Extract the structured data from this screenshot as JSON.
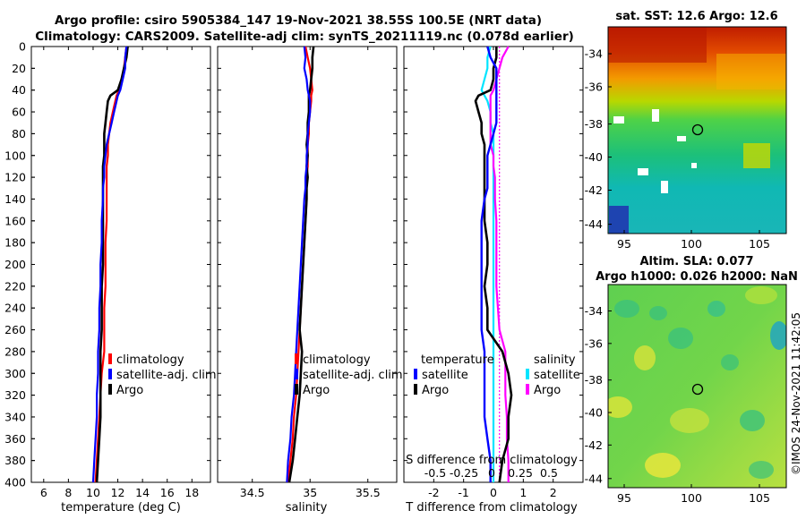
{
  "chart_data": {
    "type": "line",
    "title_line1": "Argo profile: csiro 5905384_147 19-Nov-2021 38.55S 100.5E (NRT data)",
    "title_line2": "Climatology: CARS2009. Satellite-adj clim: synTS_20211119.nc (0.078d earlier)",
    "depth_ticks": [
      "0",
      "20",
      "40",
      "60",
      "80",
      "100",
      "120",
      "140",
      "160",
      "180",
      "200",
      "220",
      "240",
      "260",
      "280",
      "300",
      "320",
      "340",
      "360",
      "380",
      "400"
    ],
    "depth": [
      0,
      10,
      20,
      30,
      40,
      45,
      50,
      60,
      70,
      80,
      90,
      100,
      110,
      120,
      130,
      140,
      160,
      180,
      200,
      220,
      240,
      260,
      280,
      300,
      320,
      340,
      360,
      380,
      400
    ],
    "panels": [
      {
        "id": "temp",
        "xlabel": "temperature (deg C)",
        "xlim": [
          5,
          19.5
        ],
        "xticks": [
          6,
          8,
          10,
          12,
          14,
          16,
          18
        ],
        "xtick_labels": [
          "6",
          "8",
          "10",
          "12",
          "14",
          "16",
          "18"
        ],
        "legend_title": "",
        "legend": [
          {
            "label": "climatology",
            "color": "#ff0000"
          },
          {
            "label": "satellite-adj. clim",
            "color": "#0000ff"
          },
          {
            "label": "Argo",
            "color": "#000000"
          }
        ],
        "series": [
          {
            "name": "climatology",
            "color": "#ff0000",
            "width": 2.2,
            "values": [
              12.7,
              12.6,
              12.5,
              12.3,
              12.1,
              11.9,
              11.8,
              11.6,
              11.4,
              11.3,
              11.2,
              11.2,
              11.1,
              11.1,
              11.1,
              11.1,
              11.1,
              11.0,
              11.0,
              11.0,
              10.9,
              10.9,
              10.9,
              10.7,
              10.6,
              10.5,
              10.4,
              10.3,
              10.2
            ]
          },
          {
            "name": "Argo",
            "color": "#000000",
            "width": 2.6,
            "values": [
              12.8,
              12.7,
              12.5,
              12.3,
              12.0,
              11.4,
              11.2,
              11.1,
              11.0,
              10.9,
              10.9,
              10.9,
              10.8,
              10.8,
              10.8,
              10.8,
              10.8,
              10.8,
              10.8,
              10.7,
              10.7,
              10.7,
              10.6,
              10.6,
              10.6,
              10.6,
              10.5,
              10.4,
              10.3
            ]
          },
          {
            "name": "satellite-adj. clim",
            "color": "#0000ff",
            "width": 2.2,
            "values": [
              12.7,
              12.6,
              12.6,
              12.4,
              12.2,
              12.0,
              11.9,
              11.7,
              11.5,
              11.3,
              11.1,
              11.0,
              10.9,
              10.9,
              10.8,
              10.8,
              10.7,
              10.7,
              10.6,
              10.6,
              10.5,
              10.5,
              10.4,
              10.4,
              10.3,
              10.3,
              10.2,
              10.1,
              10.0
            ]
          }
        ]
      },
      {
        "id": "sal",
        "xlabel": "salinity",
        "xlim": [
          34.2,
          35.75
        ],
        "xticks": [
          34.5,
          35,
          35.5
        ],
        "xtick_labels": [
          "34.5",
          "35",
          "35.5"
        ],
        "legend_title": "",
        "legend": [
          {
            "label": "climatology",
            "color": "#ff0000"
          },
          {
            "label": "satellite-adj. clim",
            "color": "#0000ff"
          },
          {
            "label": "Argo",
            "color": "#000000"
          }
        ],
        "series": [
          {
            "name": "climatology",
            "color": "#ff0000",
            "width": 2.2,
            "values": [
              34.96,
              34.98,
              35.0,
              35.01,
              35.02,
              35.01,
              35.01,
              35.0,
              34.99,
              34.99,
              34.98,
              34.98,
              34.98,
              34.97,
              34.97,
              34.97,
              34.96,
              34.95,
              34.94,
              34.93,
              34.92,
              34.91,
              34.9,
              34.89,
              34.88,
              34.86,
              34.85,
              34.83,
              34.81
            ]
          },
          {
            "name": "Argo",
            "color": "#000000",
            "width": 2.6,
            "values": [
              35.03,
              35.02,
              35.02,
              35.01,
              35.0,
              34.99,
              34.99,
              34.99,
              34.98,
              34.98,
              34.97,
              34.98,
              34.97,
              34.98,
              34.97,
              34.97,
              34.96,
              34.95,
              34.94,
              34.93,
              34.92,
              34.91,
              34.93,
              34.92,
              34.91,
              34.89,
              34.87,
              34.85,
              34.82
            ]
          },
          {
            "name": "satellite-adj. clim",
            "color": "#0000ff",
            "width": 2.2,
            "values": [
              34.95,
              34.96,
              34.95,
              34.97,
              34.98,
              34.99,
              35.0,
              35.0,
              34.99,
              34.98,
              34.98,
              34.97,
              34.97,
              34.96,
              34.96,
              34.95,
              34.94,
              34.93,
              34.92,
              34.91,
              34.9,
              34.89,
              34.88,
              34.87,
              34.86,
              34.84,
              34.83,
              34.81,
              34.8
            ]
          }
        ]
      },
      {
        "id": "diff",
        "xlabel": "T difference from climatology",
        "xlim": [
          -3,
          3
        ],
        "xticks": [
          -2,
          -1,
          0,
          1,
          2
        ],
        "xtick_labels": [
          "-2",
          "-1",
          "0",
          "1",
          "2"
        ],
        "top_axis_label": "S difference from climatology",
        "top_ticks": [
          "-0.5",
          "-0.25",
          "0",
          "0.25",
          "0.5"
        ],
        "legend_title": "temperature",
        "legend2_title": "salinity",
        "legend": [
          {
            "label": "satellite",
            "color": "#0000ff"
          },
          {
            "label": "Argo",
            "color": "#000000"
          }
        ],
        "legend2": [
          {
            "label": "satellite",
            "color": "#00e5ff"
          },
          {
            "label": "Argo",
            "color": "#ff00ff"
          }
        ],
        "series": [
          {
            "name": "zero line",
            "color": "#ff00ff",
            "width": 1.2,
            "dashed": true,
            "values": [
              0.2,
              0.2,
              0.2,
              0.2,
              0.2,
              0.2,
              0.2,
              0.2,
              0.2,
              0.2,
              0.2,
              0.2,
              0.2,
              0.2,
              0.2,
              0.2,
              0.2,
              0.2,
              0.2,
              0.2,
              0.2,
              0.2,
              0.2,
              0.2,
              0.2,
              0.2,
              0.2,
              0.2,
              0.2
            ]
          },
          {
            "name": "salinity satellite",
            "color": "#00e5ff",
            "width": 2.2,
            "values": [
              -0.1,
              -0.2,
              -0.2,
              -0.3,
              -0.4,
              -0.3,
              -0.2,
              -0.1,
              -0.1,
              0.0,
              0.0,
              0.0,
              0.0,
              0.0,
              0.0,
              0.0,
              0.0,
              0.0,
              0.0,
              0.0,
              0.0,
              0.0,
              0.0,
              0.0,
              0.0,
              0.0,
              0.0,
              0.0,
              0.0
            ]
          },
          {
            "name": "salinity Argo",
            "color": "#ff00ff",
            "width": 2.2,
            "values": [
              0.5,
              0.3,
              0.2,
              0.1,
              0.0,
              -0.1,
              -0.1,
              -0.1,
              -0.1,
              -0.1,
              -0.1,
              0.0,
              0.0,
              0.05,
              0.05,
              0.05,
              0.1,
              0.1,
              0.1,
              0.1,
              0.15,
              0.2,
              0.4,
              0.4,
              0.4,
              0.45,
              0.45,
              0.5,
              0.5
            ]
          },
          {
            "name": "temperature Argo",
            "color": "#000000",
            "width": 2.6,
            "values": [
              0.1,
              0.1,
              0.0,
              0.0,
              -0.1,
              -0.5,
              -0.6,
              -0.5,
              -0.4,
              -0.4,
              -0.3,
              -0.3,
              -0.3,
              -0.3,
              -0.3,
              -0.3,
              -0.3,
              -0.2,
              -0.2,
              -0.3,
              -0.2,
              -0.2,
              0.3,
              0.5,
              0.6,
              0.5,
              0.5,
              0.3,
              0.2
            ]
          },
          {
            "name": "temperature satellite",
            "color": "#0000ff",
            "width": 2.4,
            "values": [
              -0.2,
              -0.1,
              0.1,
              0.1,
              0.1,
              0.1,
              0.1,
              0.1,
              0.1,
              0.0,
              -0.1,
              -0.2,
              -0.2,
              -0.2,
              -0.2,
              -0.3,
              -0.4,
              -0.4,
              -0.4,
              -0.4,
              -0.4,
              -0.4,
              -0.3,
              -0.3,
              -0.3,
              -0.3,
              -0.2,
              -0.1,
              -0.1
            ]
          }
        ]
      }
    ],
    "maps": [
      {
        "id": "sst",
        "title_line1": "sat. SST: 12.6 Argo: 12.6",
        "title_line2": "",
        "yticks": [
          "-34",
          "-36",
          "-38",
          "-40",
          "-42",
          "-44"
        ],
        "xticks": [
          "95",
          "100",
          "105"
        ]
      },
      {
        "id": "sla",
        "title_line1": "Altim. SLA: 0.077",
        "title_line2": "Argo h1000: 0.026 h2000: NaN",
        "yticks": [
          "-34",
          "-36",
          "-38",
          "-40",
          "-42",
          "-44"
        ],
        "xticks": [
          "95",
          "100",
          "105"
        ]
      }
    ],
    "watermark": "©IMOS 24-Nov-2021 11:42:05"
  }
}
